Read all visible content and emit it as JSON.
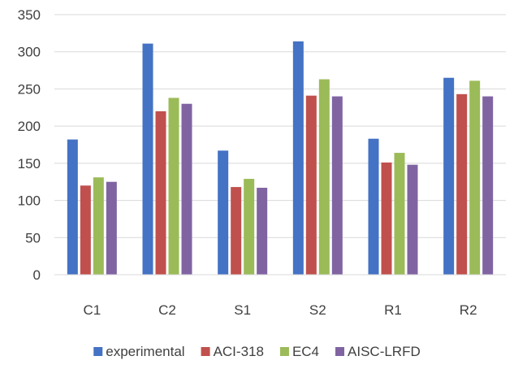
{
  "chart_data": {
    "type": "bar",
    "categories": [
      "C1",
      "C2",
      "S1",
      "S2",
      "R1",
      "R2"
    ],
    "series": [
      {
        "name": "experimental",
        "color": "#4472C4",
        "values": [
          182,
          311,
          167,
          314,
          183,
          265
        ]
      },
      {
        "name": "ACI-318",
        "color": "#C0504D",
        "values": [
          120,
          220,
          118,
          241,
          151,
          243
        ]
      },
      {
        "name": "EC4",
        "color": "#9BBB59",
        "values": [
          131,
          238,
          129,
          263,
          164,
          261
        ]
      },
      {
        "name": "AISC-LRFD",
        "color": "#8064A2",
        "values": [
          125,
          230,
          117,
          240,
          148,
          240
        ]
      }
    ],
    "yticks": [
      "0",
      "50",
      "100",
      "150",
      "200",
      "250",
      "300",
      "350"
    ],
    "ylim": [
      0,
      350
    ],
    "grid": true,
    "legend": "bottom"
  }
}
